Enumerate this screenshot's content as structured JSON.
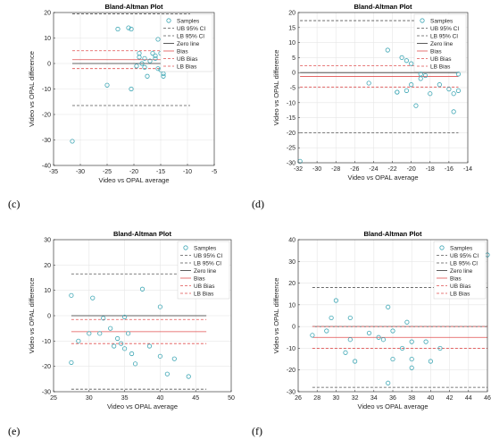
{
  "legend_items": [
    {
      "label": "Samples",
      "kind": "marker",
      "color": "#3fa7b5"
    },
    {
      "label": "UB 95% CI",
      "kind": "line",
      "color": "#555555",
      "dash": "dash"
    },
    {
      "label": "LB 95% CI",
      "kind": "line",
      "color": "#555555",
      "dash": "dash"
    },
    {
      "label": "Zero line",
      "kind": "line",
      "color": "#333333",
      "dash": "solid"
    },
    {
      "label": "Bias",
      "kind": "line",
      "color": "#e05050",
      "dash": "solid"
    },
    {
      "label": "UB Bias",
      "kind": "line",
      "color": "#e05050",
      "dash": "dash"
    },
    {
      "label": "LB Bias",
      "kind": "line",
      "color": "#e05050",
      "dash": "dash"
    }
  ],
  "chart_data": [
    {
      "panel_label": "(c)",
      "type": "scatter",
      "title": "Bland-Altman Plot",
      "xlabel": "Video vs OPAL average",
      "ylabel": "Video vs OPAL difference",
      "xlim": [
        -35,
        -5
      ],
      "ylim": [
        -40,
        20
      ],
      "xticks": [
        -35,
        -30,
        -25,
        -20,
        -15,
        -10,
        -5
      ],
      "yticks": [
        -40,
        -30,
        -20,
        -10,
        0,
        10,
        20
      ],
      "grid": true,
      "legend": "top-right",
      "line_x_range": [
        -31.5,
        -9.5
      ],
      "lines": {
        "ub_ci": 19.5,
        "lb_ci": -16.5,
        "zero": 0,
        "bias": 1.5,
        "ub_bias": 5,
        "lb_bias": -2
      },
      "points": [
        [
          -31.5,
          -30.5
        ],
        [
          -25,
          -8.5
        ],
        [
          -23,
          13.5
        ],
        [
          -21,
          14
        ],
        [
          -20.5,
          13.5
        ],
        [
          -20.5,
          -10
        ],
        [
          -19.5,
          -1
        ],
        [
          -19,
          4
        ],
        [
          -19,
          2.5
        ],
        [
          -18.5,
          0
        ],
        [
          -18,
          -1.5
        ],
        [
          -18,
          2
        ],
        [
          -17.5,
          -5
        ],
        [
          -17,
          1
        ],
        [
          -16.5,
          4
        ],
        [
          -16,
          3
        ],
        [
          -16,
          2
        ],
        [
          -15.5,
          -2
        ],
        [
          -15.5,
          9.5
        ],
        [
          -15,
          4
        ],
        [
          -15,
          -2.5
        ],
        [
          -14.5,
          -4
        ],
        [
          -14.5,
          -5
        ],
        [
          -13.5,
          3
        ]
      ]
    },
    {
      "panel_label": "(d)",
      "type": "scatter",
      "title": "Bland-Altman Plot",
      "xlabel": "Video vs OPAL average",
      "ylabel": "Video vs OPAL difference",
      "xlim": [
        -32,
        -14
      ],
      "ylim": [
        -30,
        20
      ],
      "xticks": [
        -32,
        -30,
        -28,
        -26,
        -24,
        -22,
        -20,
        -18,
        -16,
        -14
      ],
      "yticks": [
        -30,
        -25,
        -20,
        -15,
        -10,
        -5,
        0,
        5,
        10,
        15,
        20
      ],
      "grid": true,
      "legend": "top-right",
      "line_x_range": [
        -31.8,
        -15
      ],
      "lines": {
        "ub_ci": 17.3,
        "lb_ci": -20,
        "zero": 0,
        "bias": -1.3,
        "ub_bias": 2.3,
        "lb_bias": -4.8
      },
      "points": [
        [
          -31.8,
          -29.5
        ],
        [
          -24.5,
          -3.5
        ],
        [
          -22.5,
          7.5
        ],
        [
          -21.5,
          -6.5
        ],
        [
          -21.5,
          -6.5
        ],
        [
          -21,
          5
        ],
        [
          -20.5,
          4
        ],
        [
          -20.5,
          -6
        ],
        [
          -20,
          3
        ],
        [
          -20,
          -4
        ],
        [
          -19.5,
          -11
        ],
        [
          -19,
          -0.5
        ],
        [
          -19,
          -2
        ],
        [
          -18.5,
          -1
        ],
        [
          -18,
          -7
        ],
        [
          -17.5,
          3
        ],
        [
          -17,
          -4
        ],
        [
          -16,
          -5.5
        ],
        [
          -15.5,
          -7
        ],
        [
          -15.5,
          -13
        ],
        [
          -15,
          -6
        ],
        [
          -15,
          -0.5
        ]
      ]
    },
    {
      "panel_label": "(e)",
      "type": "scatter",
      "title": "Bland-Altman Plot",
      "xlabel": "Video vs OPAL average",
      "ylabel": "Video vs OPAL difference",
      "xlim": [
        25,
        50
      ],
      "ylim": [
        -30,
        30
      ],
      "xticks": [
        25,
        30,
        35,
        40,
        45,
        50
      ],
      "yticks": [
        -30,
        -20,
        -10,
        0,
        10,
        20,
        30
      ],
      "grid": true,
      "legend": "top-right",
      "line_x_range": [
        27.5,
        46.5
      ],
      "lines": {
        "ub_ci": 16.5,
        "lb_ci": -29,
        "zero": 0,
        "bias": -6.3,
        "ub_bias": -1.5,
        "lb_bias": -11
      },
      "points": [
        [
          27.5,
          8
        ],
        [
          27.5,
          -18.5
        ],
        [
          28.5,
          -10
        ],
        [
          30,
          -7
        ],
        [
          30.5,
          7
        ],
        [
          31.5,
          -7
        ],
        [
          32,
          -1
        ],
        [
          33,
          -5
        ],
        [
          33.5,
          -12
        ],
        [
          34,
          -9
        ],
        [
          34.5,
          -11
        ],
        [
          35,
          -0.5
        ],
        [
          35,
          -13
        ],
        [
          35.5,
          -7
        ],
        [
          36,
          -15
        ],
        [
          36.5,
          -19
        ],
        [
          37.5,
          10.5
        ],
        [
          38.5,
          -12
        ],
        [
          40,
          3.5
        ],
        [
          40,
          -16
        ],
        [
          41,
          -23
        ],
        [
          42,
          -17
        ],
        [
          44,
          -24
        ],
        [
          46.5,
          28
        ]
      ]
    },
    {
      "panel_label": "(f)",
      "type": "scatter",
      "title": "Bland-Altman Plot",
      "xlabel": "Video vs OPAL average",
      "ylabel": "Video vs OPAL difference",
      "xlim": [
        26,
        46
      ],
      "ylim": [
        -30,
        40
      ],
      "xticks": [
        26,
        28,
        30,
        32,
        34,
        36,
        38,
        40,
        42,
        44,
        46
      ],
      "yticks": [
        -30,
        -20,
        -10,
        0,
        10,
        20,
        30,
        40
      ],
      "grid": true,
      "legend": "top-right",
      "line_x_range": [
        27.5,
        46
      ],
      "lines": {
        "ub_ci": 18,
        "lb_ci": -28,
        "zero": 0,
        "bias": -5,
        "ub_bias": 0,
        "lb_bias": -10
      },
      "points": [
        [
          27.5,
          -4
        ],
        [
          29,
          -2
        ],
        [
          29.5,
          4
        ],
        [
          30,
          12
        ],
        [
          31,
          -12
        ],
        [
          31.5,
          -6
        ],
        [
          31.5,
          4
        ],
        [
          32,
          -16
        ],
        [
          33.5,
          -3
        ],
        [
          34.5,
          -5
        ],
        [
          35,
          -6
        ],
        [
          35.5,
          -26
        ],
        [
          35.5,
          9
        ],
        [
          36,
          -15
        ],
        [
          36,
          -2
        ],
        [
          37,
          -10
        ],
        [
          37.5,
          2
        ],
        [
          38,
          -7
        ],
        [
          38,
          -19
        ],
        [
          38,
          -15
        ],
        [
          39.5,
          -7
        ],
        [
          40,
          -16
        ],
        [
          41,
          -10
        ],
        [
          46,
          33
        ]
      ]
    }
  ]
}
